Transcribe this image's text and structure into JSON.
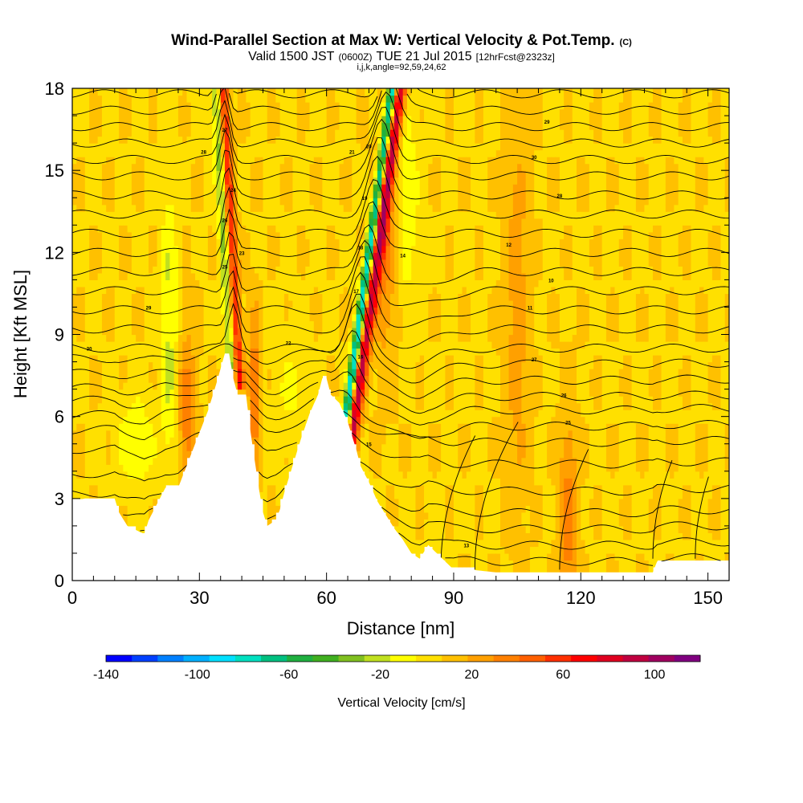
{
  "title": "Wind-Parallel Section at Max W: Vertical Velocity & Pot.Temp.",
  "copyright_mark": "(C)",
  "subtitle": {
    "valid_prefix": "Valid 1500 JST",
    "utc": "(0600Z)",
    "date": "TUE 21 Jul 2015",
    "forecast": "[12hrFcst@2323z]"
  },
  "subsubtitle": "i,j,k,angle=92,59,24,62",
  "chart_data": {
    "type": "heatmap",
    "xlabel": "Distance [nm]",
    "ylabel": "Height [Kft MSL]",
    "xlim": [
      0,
      155
    ],
    "ylim": [
      0,
      18
    ],
    "x_ticks": [
      0,
      30,
      60,
      90,
      120,
      150
    ],
    "y_ticks": [
      0,
      3,
      6,
      9,
      12,
      15,
      18
    ],
    "colorbar": {
      "label": "Vertical Velocity [cm/s]",
      "range": [
        -140,
        120
      ],
      "tick_values": [
        -140,
        -100,
        -60,
        -20,
        20,
        60,
        100
      ],
      "colors": [
        "#0000ff",
        "#0040ff",
        "#0080ff",
        "#00b0ff",
        "#00e0ff",
        "#00e0c0",
        "#00c080",
        "#20b040",
        "#40b020",
        "#80c020",
        "#c0e020",
        "#ffff00",
        "#ffe000",
        "#ffc000",
        "#ffa000",
        "#ff8000",
        "#ff6000",
        "#ff3000",
        "#ff0000",
        "#e00020",
        "#c00040",
        "#a00060",
        "#800080"
      ]
    },
    "terrain": [
      [
        0,
        2.9
      ],
      [
        3,
        3
      ],
      [
        10,
        3
      ],
      [
        11,
        2.5
      ],
      [
        13,
        2
      ],
      [
        17,
        1.7
      ],
      [
        18,
        2.2
      ],
      [
        20,
        2.8
      ],
      [
        22,
        3.4
      ],
      [
        25,
        3.4
      ],
      [
        28,
        4.6
      ],
      [
        30,
        5.4
      ],
      [
        32,
        6.2
      ],
      [
        34,
        7.2
      ],
      [
        36,
        8.3
      ],
      [
        37,
        8.3
      ],
      [
        38,
        7.4
      ],
      [
        39,
        6.8
      ],
      [
        41,
        6.8
      ],
      [
        42,
        5.5
      ],
      [
        44,
        3.4
      ],
      [
        45,
        2.5
      ],
      [
        46,
        2
      ],
      [
        48,
        2.2
      ],
      [
        49,
        2.6
      ],
      [
        50,
        3.2
      ],
      [
        52,
        4.2
      ],
      [
        54,
        5.2
      ],
      [
        56,
        6.1
      ],
      [
        58,
        6.8
      ],
      [
        59,
        7.4
      ],
      [
        60,
        7.4
      ],
      [
        61,
        6.8
      ],
      [
        63,
        6.5
      ],
      [
        65,
        5.8
      ],
      [
        67,
        4.8
      ],
      [
        68,
        4.2
      ],
      [
        70,
        3.6
      ],
      [
        72,
        2.9
      ],
      [
        74,
        2.4
      ],
      [
        76,
        1.9
      ],
      [
        78,
        1.5
      ],
      [
        80,
        1
      ],
      [
        82,
        0.8
      ],
      [
        84,
        1.3
      ],
      [
        86,
        1
      ],
      [
        88,
        0.7
      ],
      [
        90,
        0.4
      ],
      [
        94,
        0.4
      ],
      [
        100,
        0.3
      ],
      [
        110,
        0.3
      ],
      [
        120,
        0.3
      ],
      [
        130,
        0.3
      ],
      [
        137,
        0.3
      ],
      [
        138,
        0.7
      ],
      [
        150,
        0.7
      ],
      [
        155,
        0.7
      ]
    ],
    "contour_label_values": [
      "30",
      "29",
      "28",
      "27",
      "26",
      "25",
      "24",
      "23",
      "22",
      "21",
      "20",
      "19",
      "18",
      "17",
      "16",
      "15",
      "14",
      "13",
      "12",
      "11",
      "10"
    ]
  }
}
